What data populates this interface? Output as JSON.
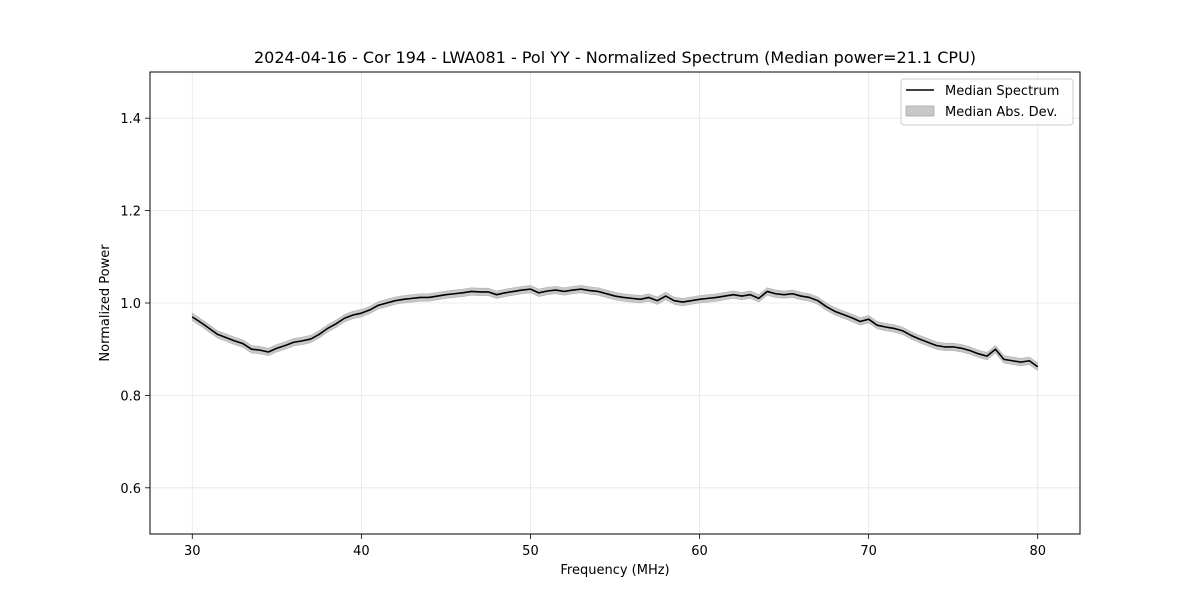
{
  "chart_data": {
    "type": "line",
    "title": "2024-04-16 - Cor 194 - LWA081 - Pol YY - Normalized Spectrum (Median power=21.1 CPU)",
    "xlabel": "Frequency (MHz)",
    "ylabel": "Normalized Power",
    "xlim": [
      27.5,
      82.5
    ],
    "ylim": [
      0.5,
      1.5
    ],
    "xticks": [
      30,
      40,
      50,
      60,
      70,
      80
    ],
    "xtick_labels": [
      "30",
      "40",
      "50",
      "60",
      "70",
      "80"
    ],
    "yticks": [
      0.6,
      0.8,
      1.0,
      1.2,
      1.4
    ],
    "ytick_labels": [
      "0.6",
      "0.8",
      "1.0",
      "1.2",
      "1.4"
    ],
    "grid": true,
    "legend_position": "top-right",
    "series": [
      {
        "name": "Median Spectrum",
        "color": "#000000",
        "x": [
          30,
          30.5,
          31,
          31.5,
          32,
          32.5,
          33,
          33.5,
          34,
          34.5,
          35,
          35.5,
          36,
          36.5,
          37,
          37.5,
          38,
          38.5,
          39,
          39.5,
          40,
          40.5,
          41,
          41.5,
          42,
          42.5,
          43,
          43.5,
          44,
          44.5,
          45,
          45.5,
          46,
          46.5,
          47,
          47.5,
          48,
          48.5,
          49,
          49.5,
          50,
          50.5,
          51,
          51.5,
          52,
          52.5,
          53,
          53.5,
          54,
          54.5,
          55,
          55.5,
          56,
          56.5,
          57,
          57.5,
          58,
          58.5,
          59,
          59.5,
          60,
          60.5,
          61,
          61.5,
          62,
          62.5,
          63,
          63.5,
          64,
          64.5,
          65,
          65.5,
          66,
          66.5,
          67,
          67.5,
          68,
          68.5,
          69,
          69.5,
          70,
          70.5,
          71,
          71.5,
          72,
          72.5,
          73,
          73.5,
          74,
          74.5,
          75,
          75.5,
          76,
          76.5,
          77,
          77.5,
          78,
          78.5,
          79,
          79.5,
          80
        ],
        "values": [
          0.97,
          0.958,
          0.945,
          0.932,
          0.925,
          0.918,
          0.912,
          0.9,
          0.898,
          0.894,
          0.902,
          0.908,
          0.915,
          0.918,
          0.922,
          0.932,
          0.945,
          0.955,
          0.967,
          0.974,
          0.978,
          0.985,
          0.995,
          1.0,
          1.005,
          1.008,
          1.01,
          1.012,
          1.012,
          1.015,
          1.018,
          1.02,
          1.022,
          1.025,
          1.024,
          1.024,
          1.018,
          1.022,
          1.025,
          1.028,
          1.03,
          1.022,
          1.026,
          1.028,
          1.025,
          1.028,
          1.03,
          1.027,
          1.025,
          1.02,
          1.015,
          1.012,
          1.01,
          1.008,
          1.012,
          1.005,
          1.015,
          1.005,
          1.002,
          1.005,
          1.008,
          1.01,
          1.012,
          1.015,
          1.018,
          1.015,
          1.018,
          1.01,
          1.025,
          1.02,
          1.018,
          1.02,
          1.015,
          1.012,
          1.005,
          0.992,
          0.982,
          0.975,
          0.968,
          0.96,
          0.965,
          0.952,
          0.948,
          0.945,
          0.94,
          0.93,
          0.922,
          0.915,
          0.908,
          0.905,
          0.905,
          0.902,
          0.897,
          0.89,
          0.885,
          0.9,
          0.878,
          0.875,
          0.872,
          0.875,
          0.862
        ],
        "spread": 0.008
      }
    ],
    "legend": [
      {
        "label": "Median Spectrum",
        "kind": "line",
        "color": "#000000"
      },
      {
        "label": "Median Abs. Dev.",
        "kind": "band",
        "color": "#c8c8c8"
      }
    ]
  }
}
